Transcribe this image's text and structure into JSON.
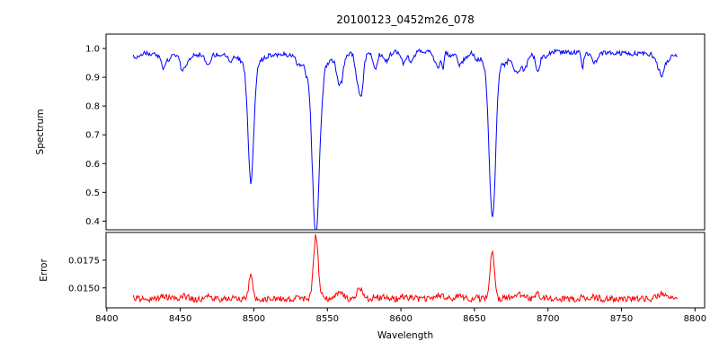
{
  "chart_data": {
    "type": "line",
    "title": "20100123_0452m26_078",
    "xlabel": "Wavelength",
    "x_range": [
      8399.5,
      8806.5
    ],
    "x_ticks": [
      8400,
      8450,
      8500,
      8550,
      8600,
      8650,
      8700,
      8750,
      8800
    ],
    "data_x_start": 8418,
    "data_x_end": 8788,
    "seed": 11,
    "legend": "none",
    "grid": false,
    "panels": [
      {
        "name": "spectrum",
        "ylabel": "Spectrum",
        "color": "#0000ff",
        "y_range": [
          0.37,
          1.05
        ],
        "y_ticks": [
          0.4,
          0.5,
          0.6,
          0.7,
          0.8,
          0.9,
          1.0
        ],
        "y_tick_decimals": 1,
        "continuum": 0.985,
        "noise_amplitude": 0.016,
        "minor_feature_count": 55,
        "absorption_lines": [
          {
            "center": 8498.0,
            "depth": 0.4,
            "sigma": 1.9,
            "wing_depth": 0.045,
            "wing_sigma": 5.5,
            "min_flux": 0.58
          },
          {
            "center": 8542.1,
            "depth": 0.565,
            "sigma": 2.3,
            "wing_depth": 0.06,
            "wing_sigma": 7.5,
            "min_flux": 0.41
          },
          {
            "center": 8662.1,
            "depth": 0.515,
            "sigma": 2.1,
            "wing_depth": 0.055,
            "wing_sigma": 6.5,
            "min_flux": 0.46
          }
        ]
      },
      {
        "name": "error",
        "ylabel": "Error",
        "color": "#ff0000",
        "y_range": [
          0.0132,
          0.02
        ],
        "y_ticks": [
          0.015,
          0.0175
        ],
        "y_tick_decimals": 4,
        "baseline": 0.014,
        "noise_amplitude": 0.00055,
        "peaks": [
          {
            "center": 8498.0,
            "height": 0.0022,
            "sigma": 1.3
          },
          {
            "center": 8542.1,
            "height": 0.0056,
            "sigma": 1.6
          },
          {
            "center": 8662.1,
            "height": 0.0043,
            "sigma": 1.4
          }
        ]
      }
    ]
  }
}
